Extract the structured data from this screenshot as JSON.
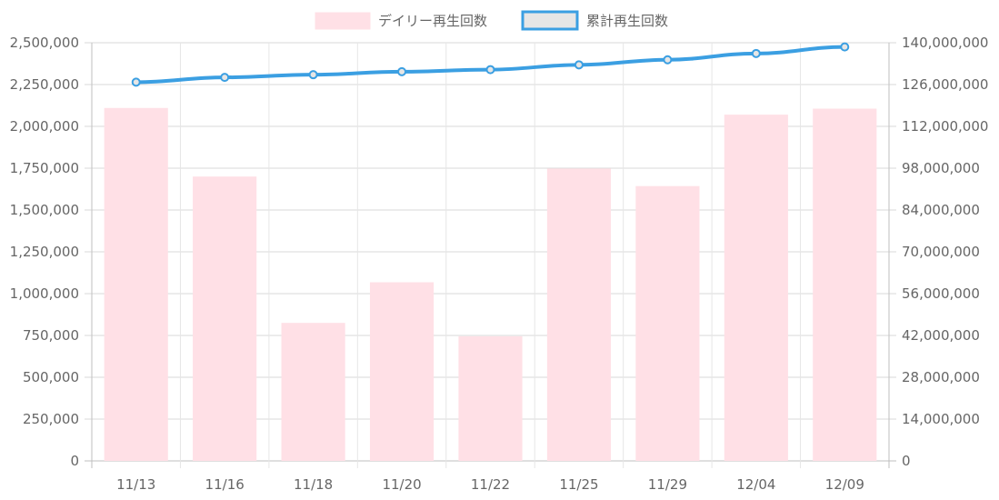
{
  "chart_data": {
    "type": "bar",
    "categories": [
      "11/13",
      "11/16",
      "11/18",
      "11/20",
      "11/22",
      "11/25",
      "11/29",
      "12/04",
      "12/09"
    ],
    "series": [
      {
        "name": "デイリー再生回数",
        "type": "bar",
        "axis": "left",
        "color": "#FFE0E6",
        "values": [
          2110000,
          1700000,
          825000,
          1068000,
          745000,
          1748000,
          1643000,
          2070000,
          2106000
        ]
      },
      {
        "name": "累計再生回数",
        "type": "line",
        "axis": "right",
        "color": "#3B9FE2",
        "values": [
          126800000,
          128400000,
          129300000,
          130300000,
          131000000,
          132600000,
          134300000,
          136400000,
          138600000
        ]
      }
    ],
    "y_left": {
      "ylim": [
        0,
        2500000
      ],
      "ticks": [
        "0",
        "250,000",
        "500,000",
        "750,000",
        "1,000,000",
        "1,250,000",
        "1,500,000",
        "1,750,000",
        "2,000,000",
        "2,250,000",
        "2,500,000"
      ]
    },
    "y_right": {
      "ylim": [
        0,
        140000000
      ],
      "ticks": [
        "0",
        "14,000,000",
        "28,000,000",
        "42,000,000",
        "56,000,000",
        "70,000,000",
        "84,000,000",
        "98,000,000",
        "112,000,000",
        "126,000,000",
        "140,000,000"
      ]
    },
    "grid": true,
    "legend_position": "top-center",
    "legend": [
      {
        "label": "デイリー再生回数",
        "fill": "#FFE0E6",
        "border": "#FFE0E6"
      },
      {
        "label": "累計再生回数",
        "fill": "#E6E6E6",
        "border": "#3B9FE2"
      }
    ]
  }
}
